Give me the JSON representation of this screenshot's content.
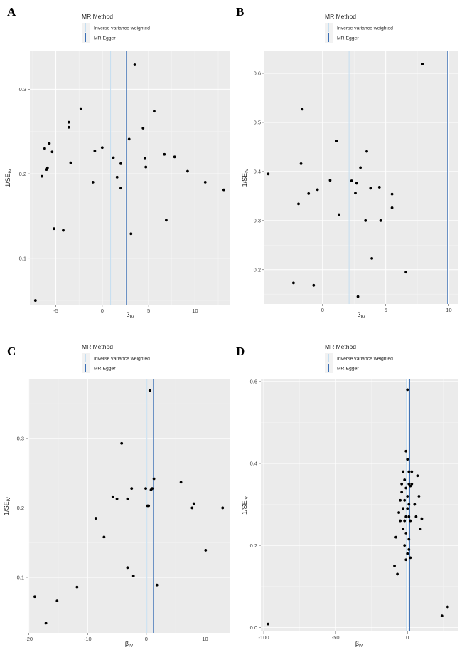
{
  "chart_data": [
    {
      "panel": "A",
      "type": "scatter",
      "legend_title": "MR Method",
      "legend_entries": [
        {
          "label": "Inverse variance weighted",
          "color": "#c5def0"
        },
        {
          "label": "MR Egger",
          "color": "#3a6fb5"
        }
      ],
      "xlabel": "β",
      "xlabel_sub": "IV",
      "ylabel": "1/SE",
      "ylabel_sub": "IV",
      "xlim": [
        -7.8,
        13.8
      ],
      "ylim": [
        0.045,
        0.345
      ],
      "xticks": [
        -5,
        0,
        5,
        10
      ],
      "xtick_labels": [
        "-5",
        "0",
        "5",
        "10"
      ],
      "yticks": [
        0.1,
        0.2,
        0.3
      ],
      "ytick_labels": [
        "0.1",
        "0.2",
        "0.3"
      ],
      "ivw_slope": 0.9,
      "egger_slope": 2.6,
      "points": [
        [
          -7.2,
          0.05
        ],
        [
          -6.5,
          0.197
        ],
        [
          -6.2,
          0.23
        ],
        [
          -6.0,
          0.205
        ],
        [
          -5.9,
          0.207
        ],
        [
          -5.7,
          0.236
        ],
        [
          -5.4,
          0.226
        ],
        [
          -5.2,
          0.135
        ],
        [
          -4.2,
          0.133
        ],
        [
          -3.6,
          0.261
        ],
        [
          -3.6,
          0.255
        ],
        [
          -3.4,
          0.213
        ],
        [
          -2.3,
          0.277
        ],
        [
          -1.0,
          0.19
        ],
        [
          -0.8,
          0.227
        ],
        [
          0.0,
          0.231
        ],
        [
          1.2,
          0.219
        ],
        [
          1.6,
          0.196
        ],
        [
          2.0,
          0.212
        ],
        [
          2.0,
          0.183
        ],
        [
          2.9,
          0.241
        ],
        [
          3.1,
          0.129
        ],
        [
          3.5,
          0.329
        ],
        [
          4.4,
          0.254
        ],
        [
          4.6,
          0.218
        ],
        [
          4.7,
          0.208
        ],
        [
          5.6,
          0.274
        ],
        [
          6.7,
          0.223
        ],
        [
          6.9,
          0.145
        ],
        [
          7.8,
          0.22
        ],
        [
          9.2,
          0.203
        ],
        [
          11.1,
          0.19
        ],
        [
          13.1,
          0.181
        ]
      ]
    },
    {
      "panel": "B",
      "type": "scatter",
      "legend_title": "MR Method",
      "legend_entries": [
        {
          "label": "Inverse variance weighted",
          "color": "#c5def0"
        },
        {
          "label": "MR Egger",
          "color": "#3a6fb5"
        }
      ],
      "xlabel": "β",
      "xlabel_sub": "IV",
      "ylabel": "1/SE",
      "ylabel_sub": "IV",
      "xlim": [
        -4.6,
        10.7
      ],
      "ylim": [
        0.13,
        0.645
      ],
      "xticks": [
        0,
        5,
        10
      ],
      "xtick_labels": [
        "0",
        "5",
        "10"
      ],
      "yticks": [
        0.2,
        0.3,
        0.4,
        0.5,
        0.6
      ],
      "ytick_labels": [
        "0.2",
        "0.3",
        "0.4",
        "0.5",
        "0.6"
      ],
      "ivw_slope": 2.1,
      "egger_slope": 9.9,
      "points": [
        [
          -4.3,
          0.395
        ],
        [
          -2.3,
          0.173
        ],
        [
          -1.9,
          0.334
        ],
        [
          -1.7,
          0.416
        ],
        [
          -1.6,
          0.527
        ],
        [
          -1.1,
          0.355
        ],
        [
          -0.7,
          0.168
        ],
        [
          -0.4,
          0.363
        ],
        [
          0.6,
          0.382
        ],
        [
          1.1,
          0.462
        ],
        [
          1.3,
          0.312
        ],
        [
          2.3,
          0.381
        ],
        [
          2.6,
          0.356
        ],
        [
          2.7,
          0.376
        ],
        [
          2.8,
          0.145
        ],
        [
          3.0,
          0.408
        ],
        [
          3.4,
          0.3
        ],
        [
          3.5,
          0.441
        ],
        [
          3.8,
          0.366
        ],
        [
          3.9,
          0.223
        ],
        [
          4.5,
          0.368
        ],
        [
          4.6,
          0.3
        ],
        [
          5.5,
          0.354
        ],
        [
          5.5,
          0.326
        ],
        [
          6.6,
          0.195
        ],
        [
          7.9,
          0.619
        ]
      ]
    },
    {
      "panel": "C",
      "type": "scatter",
      "legend_title": "MR Method",
      "legend_entries": [
        {
          "label": "Inverse variance weighted",
          "color": "#c5def0"
        },
        {
          "label": "MR Egger",
          "color": "#3a6fb5"
        }
      ],
      "xlabel": "β",
      "xlabel_sub": "IV",
      "ylabel": "1/SE",
      "ylabel_sub": "IV",
      "xlim": [
        -20.2,
        14.3
      ],
      "ylim": [
        0.02,
        0.385
      ],
      "xticks": [
        -20,
        -10,
        0,
        10
      ],
      "xtick_labels": [
        "-20",
        "-10",
        "0",
        "10"
      ],
      "yticks": [
        0.1,
        0.2,
        0.3
      ],
      "ytick_labels": [
        "0.1",
        "0.2",
        "0.3"
      ],
      "ivw_slope": 0.1,
      "egger_slope": 1.2,
      "points": [
        [
          -19,
          0.072
        ],
        [
          -17.1,
          0.034
        ],
        [
          -15.2,
          0.066
        ],
        [
          -11.8,
          0.086
        ],
        [
          -8.6,
          0.185
        ],
        [
          -7.2,
          0.158
        ],
        [
          -5.7,
          0.216
        ],
        [
          -5.0,
          0.213
        ],
        [
          -4.2,
          0.293
        ],
        [
          -3.2,
          0.213
        ],
        [
          -3.2,
          0.114
        ],
        [
          -2.5,
          0.228
        ],
        [
          -2.2,
          0.102
        ],
        [
          -0.1,
          0.228
        ],
        [
          0.2,
          0.203
        ],
        [
          0.4,
          0.203
        ],
        [
          0.6,
          0.369
        ],
        [
          0.8,
          0.226
        ],
        [
          1.0,
          0.228
        ],
        [
          1.3,
          0.242
        ],
        [
          1.8,
          0.089
        ],
        [
          5.9,
          0.237
        ],
        [
          7.8,
          0.2
        ],
        [
          8.1,
          0.206
        ],
        [
          10.1,
          0.139
        ],
        [
          13.0,
          0.2
        ]
      ]
    },
    {
      "panel": "D",
      "type": "scatter",
      "legend_title": "MR Method",
      "legend_entries": [
        {
          "label": "Inverse variance weighted",
          "color": "#c5def0"
        },
        {
          "label": "MR Egger",
          "color": "#3a6fb5"
        }
      ],
      "xlabel": "β",
      "xlabel_sub": "IV",
      "ylabel": "1/SE",
      "ylabel_sub": "IV",
      "xlim": [
        -102,
        35
      ],
      "ylim": [
        -0.01,
        0.605
      ],
      "xticks": [
        -100,
        -50,
        0
      ],
      "xtick_labels": [
        "-100",
        "-50",
        "0"
      ],
      "yticks": [
        0.0,
        0.2,
        0.4,
        0.6
      ],
      "ytick_labels": [
        "0.0",
        "0.2",
        "0.4",
        "0.6"
      ],
      "ivw_slope": -0.8,
      "egger_slope": 1.6,
      "points": [
        [
          -97,
          0.008
        ],
        [
          -9,
          0.15
        ],
        [
          -8,
          0.22
        ],
        [
          -7,
          0.13
        ],
        [
          -6,
          0.28
        ],
        [
          -5,
          0.31
        ],
        [
          -5,
          0.26
        ],
        [
          -4,
          0.35
        ],
        [
          -4,
          0.33
        ],
        [
          -3,
          0.38
        ],
        [
          -3,
          0.29
        ],
        [
          -3,
          0.24
        ],
        [
          -2,
          0.36
        ],
        [
          -2,
          0.31
        ],
        [
          -2,
          0.26
        ],
        [
          -2,
          0.2
        ],
        [
          -1,
          0.43
        ],
        [
          -1,
          0.34
        ],
        [
          -1,
          0.27
        ],
        [
          -1,
          0.23
        ],
        [
          -1,
          0.165
        ],
        [
          0,
          0.58
        ],
        [
          0,
          0.41
        ],
        [
          0,
          0.32
        ],
        [
          0,
          0.29
        ],
        [
          0,
          0.18
        ],
        [
          1,
          0.38
        ],
        [
          1,
          0.35
        ],
        [
          1,
          0.3
        ],
        [
          1,
          0.27
        ],
        [
          1,
          0.215
        ],
        [
          1,
          0.19
        ],
        [
          2,
          0.345
        ],
        [
          2,
          0.26
        ],
        [
          2,
          0.17
        ],
        [
          3,
          0.38
        ],
        [
          3,
          0.35
        ],
        [
          5,
          0.3
        ],
        [
          6,
          0.27
        ],
        [
          7,
          0.37
        ],
        [
          8,
          0.32
        ],
        [
          9,
          0.24
        ],
        [
          10,
          0.265
        ],
        [
          24,
          0.028
        ],
        [
          28,
          0.05
        ]
      ]
    }
  ]
}
